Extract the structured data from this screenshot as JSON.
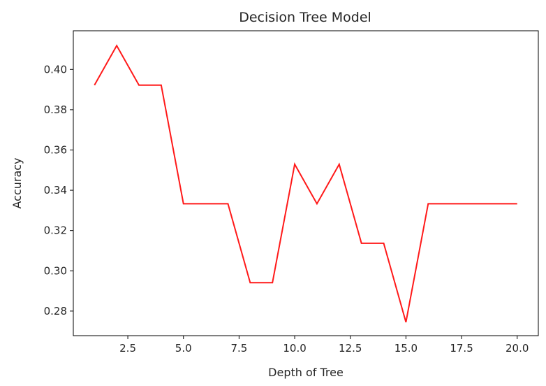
{
  "chart_data": {
    "type": "line",
    "title": "Decision Tree Model",
    "xlabel": "Depth of Tree",
    "ylabel": "Accuracy",
    "xlim": [
      0.05,
      20.95
    ],
    "ylim": [
      0.2678,
      0.4192
    ],
    "x_ticks": [
      2.5,
      5.0,
      7.5,
      10.0,
      12.5,
      15.0,
      17.5,
      20.0
    ],
    "x_tick_labels": [
      "2.5",
      "5.0",
      "7.5",
      "10.0",
      "12.5",
      "15.0",
      "17.5",
      "20.0"
    ],
    "y_ticks": [
      0.28,
      0.3,
      0.32,
      0.34,
      0.36,
      0.38,
      0.4
    ],
    "y_tick_labels": [
      "0.28",
      "0.30",
      "0.32",
      "0.34",
      "0.36",
      "0.38",
      "0.40"
    ],
    "grid": false,
    "series": [
      {
        "color": "#ff0000",
        "x": [
          1,
          2,
          3,
          4,
          5,
          6,
          7,
          8,
          9,
          10,
          11,
          12,
          13,
          14,
          15,
          16,
          17,
          18,
          19,
          20
        ],
        "y": [
          0.3922,
          0.4118,
          0.3922,
          0.3922,
          0.3333,
          0.3333,
          0.3333,
          0.2941,
          0.2941,
          0.3529,
          0.3333,
          0.3529,
          0.3137,
          0.3137,
          0.2745,
          0.3333,
          0.3333,
          0.3333,
          0.3333,
          0.3333
        ]
      }
    ]
  }
}
